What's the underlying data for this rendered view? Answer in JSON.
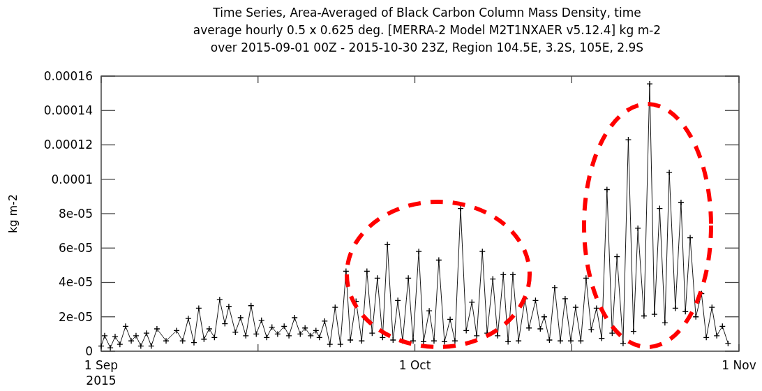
{
  "chart_data": {
    "type": "line",
    "title": "Time Series, Area-Averaged of Black Carbon Column Mass Density, time\naverage hourly 0.5 x 0.625 deg. [MERRA-2 Model M2T1NXAER v5.12.4] kg m-2\nover 2015-09-01 00Z - 2015-10-30 23Z, Region 104.5E, 3.2S, 105E, 2.9S",
    "ylabel": "kg m-2",
    "xlim": [
      "2015-09-01T00:00",
      "2015-11-01T00:00"
    ],
    "xticks": [
      {
        "value": "2015-09-01",
        "label": "1 Sep\n2015"
      },
      {
        "value": "2015-09-16",
        "label": null
      },
      {
        "value": "2015-10-01",
        "label": "1 Oct"
      },
      {
        "value": "2015-10-16",
        "label": null
      },
      {
        "value": "2015-11-01",
        "label": "1 Nov"
      }
    ],
    "ylim": [
      0,
      0.00016
    ],
    "yticks": [
      0,
      {
        "value": 2e-05,
        "label": "2e-05"
      },
      {
        "value": 4e-05,
        "label": "4e-05"
      },
      {
        "value": 6e-05,
        "label": "6e-05"
      },
      {
        "value": 8e-05,
        "label": "8e-05"
      },
      {
        "value": 0.0001,
        "label": "0.0001"
      },
      {
        "value": 0.00012,
        "label": "0.00012"
      },
      {
        "value": 0.00014,
        "label": "0.00014"
      },
      {
        "value": 0.00016,
        "label": "0.00016"
      }
    ],
    "grid": false,
    "marker": "cross",
    "line_style": "solid",
    "series": [
      {
        "color": "#000000",
        "x": [
          "2015-09-01T00:00",
          "2015-09-01T08:00",
          "2015-09-01T21:00",
          "2015-09-02T08:00",
          "2015-09-02T19:00",
          "2015-09-03T08:00",
          "2015-09-03T21:00",
          "2015-09-04T08:00",
          "2015-09-04T19:00",
          "2015-09-05T08:00",
          "2015-09-05T19:00",
          "2015-09-06T08:00",
          "2015-09-07T05:00",
          "2015-09-08T05:00",
          "2015-09-08T19:00",
          "2015-09-09T08:00",
          "2015-09-09T21:00",
          "2015-09-10T08:00",
          "2015-09-10T20:00",
          "2015-09-11T08:00",
          "2015-09-11T20:00",
          "2015-09-12T08:00",
          "2015-09-12T20:00",
          "2015-09-13T05:00",
          "2015-09-13T20:00",
          "2015-09-14T08:00",
          "2015-09-14T20:00",
          "2015-09-15T08:00",
          "2015-09-15T20:00",
          "2015-09-16T08:00",
          "2015-09-16T20:00",
          "2015-09-17T08:00",
          "2015-09-17T21:00",
          "2015-09-18T12:00",
          "2015-09-18T23:00",
          "2015-09-19T12:00",
          "2015-09-20T01:00",
          "2015-09-20T12:00",
          "2015-09-21T01:00",
          "2015-09-21T13:00",
          "2015-09-21T21:00",
          "2015-09-22T09:00",
          "2015-09-22T21:00",
          "2015-09-23T09:00",
          "2015-09-23T21:00",
          "2015-09-24T10:00",
          "2015-09-24T20:00",
          "2015-09-25T09:00",
          "2015-09-25T22:00",
          "2015-09-26T10:00",
          "2015-09-26T22:00",
          "2015-09-27T10:00",
          "2015-09-27T22:00",
          "2015-09-28T09:00",
          "2015-09-28T22:00",
          "2015-09-29T09:00",
          "2015-09-29T20:00",
          "2015-09-30T09:00",
          "2015-09-30T20:00",
          "2015-10-01T09:00",
          "2015-10-01T20:00",
          "2015-10-02T09:00",
          "2015-10-02T20:00",
          "2015-10-03T07:00",
          "2015-10-03T20:00",
          "2015-10-04T09:00",
          "2015-10-04T20:00",
          "2015-10-05T09:00",
          "2015-10-05T22:00",
          "2015-10-06T11:00",
          "2015-10-06T22:00",
          "2015-10-07T11:00",
          "2015-10-07T22:00",
          "2015-10-08T11:00",
          "2015-10-08T22:00",
          "2015-10-09T11:00",
          "2015-10-09T22:00",
          "2015-10-10T09:00",
          "2015-10-10T22:00",
          "2015-10-11T13:00",
          "2015-10-11T22:00",
          "2015-10-12T13:00",
          "2015-10-13T00:00",
          "2015-10-13T09:00",
          "2015-10-13T21:00",
          "2015-10-14T09:00",
          "2015-10-14T22:00",
          "2015-10-15T09:00",
          "2015-10-15T22:00",
          "2015-10-16T09:00",
          "2015-10-16T21:00",
          "2015-10-17T09:00",
          "2015-10-17T21:00",
          "2015-10-18T09:00",
          "2015-10-18T21:00",
          "2015-10-19T09:00",
          "2015-10-19T21:00",
          "2015-10-20T08:00",
          "2015-10-20T22:00",
          "2015-10-21T10:00",
          "2015-10-21T22:00",
          "2015-10-22T08:00",
          "2015-10-22T22:00",
          "2015-10-23T11:00",
          "2015-10-23T22:00",
          "2015-10-24T10:00",
          "2015-10-24T22:00",
          "2015-10-25T08:00",
          "2015-10-25T22:00",
          "2015-10-26T11:00",
          "2015-10-26T21:00",
          "2015-10-27T08:00",
          "2015-10-27T21:00",
          "2015-10-28T10:00",
          "2015-10-28T21:00",
          "2015-10-29T10:00",
          "2015-10-29T21:00",
          "2015-10-30T10:00",
          "2015-10-30T23:00"
        ],
        "values": [
          3e-06,
          9e-06,
          2e-06,
          8.5e-06,
          4e-06,
          1.45e-05,
          6e-06,
          9e-06,
          3e-06,
          1.05e-05,
          3e-06,
          1.3e-05,
          6e-06,
          1.2e-05,
          6e-06,
          1.9e-05,
          5e-06,
          2.5e-05,
          7e-06,
          1.3e-05,
          8e-06,
          3e-05,
          1.6e-05,
          2.6e-05,
          1.1e-05,
          1.95e-05,
          9e-06,
          2.65e-05,
          1e-05,
          1.8e-05,
          8e-06,
          1.4e-05,
          1e-05,
          1.45e-05,
          9e-06,
          1.95e-05,
          1e-05,
          1.35e-05,
          9e-06,
          1.2e-05,
          8e-06,
          1.75e-05,
          4e-06,
          2.55e-05,
          4e-06,
          4.65e-05,
          6.5e-06,
          2.9e-05,
          6e-06,
          4.65e-05,
          1.05e-05,
          4.25e-05,
          8e-06,
          6.2e-05,
          6.5e-06,
          2.95e-05,
          6e-06,
          4.25e-05,
          6e-06,
          5.8e-05,
          5.5e-06,
          2.35e-05,
          6e-06,
          5.3e-05,
          5.5e-06,
          1.85e-05,
          6e-06,
          8.3e-05,
          1.2e-05,
          2.85e-05,
          9e-06,
          5.8e-05,
          1.05e-05,
          4.2e-05,
          9e-06,
          4.45e-05,
          5.5e-06,
          4.45e-05,
          6e-06,
          3.05e-05,
          1.35e-05,
          2.95e-05,
          1.3e-05,
          2e-05,
          6.5e-06,
          3.7e-05,
          6e-06,
          3.05e-05,
          6e-06,
          2.55e-05,
          6e-06,
          4.25e-05,
          1.25e-05,
          2.5e-05,
          7.5e-06,
          9.4e-05,
          1.05e-05,
          5.5e-05,
          4.5e-06,
          0.000123,
          1.15e-05,
          7.15e-05,
          2.05e-05,
          0.0001555,
          2.15e-05,
          8.3e-05,
          1.65e-05,
          0.000104,
          2.5e-05,
          8.65e-05,
          2.3e-05,
          6.6e-05,
          2e-05,
          3.35e-05,
          8e-06,
          2.55e-05,
          9e-06,
          1.45e-05,
          4.5e-06
        ]
      }
    ]
  }
}
